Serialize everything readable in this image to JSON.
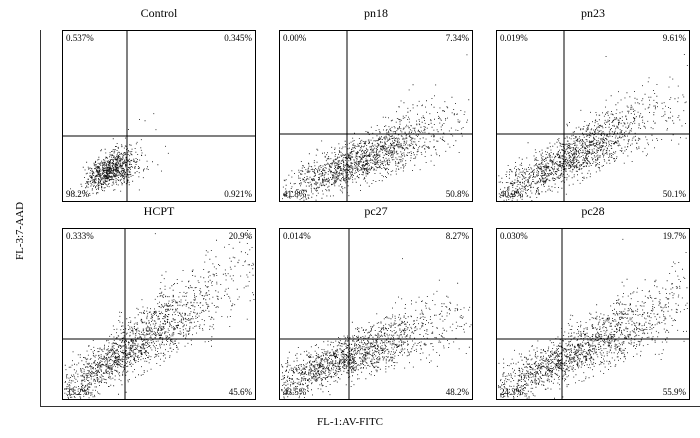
{
  "axis_labels": {
    "x": "FL-1:AV-FITC",
    "y": "FL-3:7-AAD"
  },
  "chart_data": [
    {
      "type": "scatter",
      "title": "Control",
      "quadrants": {
        "upper_left": "0.537%",
        "upper_right": "0.345%",
        "lower_left": "98.2%",
        "lower_right": "0.921%"
      }
    },
    {
      "type": "scatter",
      "title": "pn18",
      "quadrants": {
        "upper_left": "0.00%",
        "upper_right": "7.34%",
        "lower_left": "41.8%",
        "lower_right": "50.8%"
      }
    },
    {
      "type": "scatter",
      "title": "pn23",
      "quadrants": {
        "upper_left": "0.019%",
        "upper_right": "9.61%",
        "lower_left": "40.2%",
        "lower_right": "50.1%"
      }
    },
    {
      "type": "scatter",
      "title": "HCPT",
      "quadrants": {
        "upper_left": "0.333%",
        "upper_right": "20.9%",
        "lower_left": "33.2%",
        "lower_right": "45.6%"
      }
    },
    {
      "type": "scatter",
      "title": "pc27",
      "quadrants": {
        "upper_left": "0.014%",
        "upper_right": "8.27%",
        "lower_left": "43.5%",
        "lower_right": "48.2%"
      }
    },
    {
      "type": "scatter",
      "title": "pc28",
      "quadrants": {
        "upper_left": "0.030%",
        "upper_right": "19.7%",
        "lower_left": "24.3%",
        "lower_right": "55.9%"
      }
    }
  ]
}
